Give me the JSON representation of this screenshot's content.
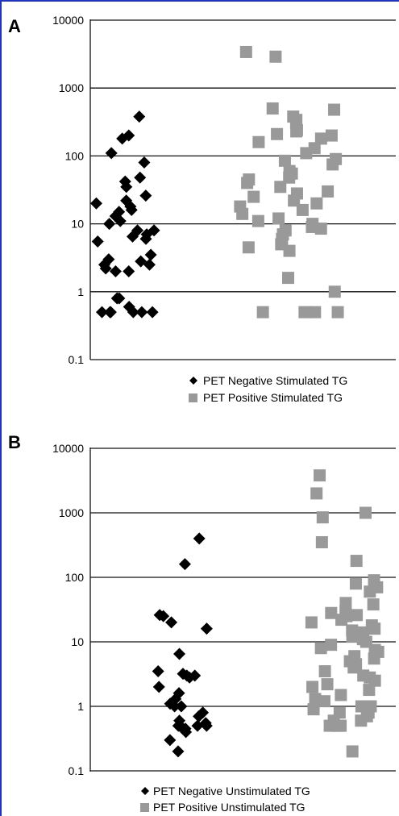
{
  "chart_data": [
    {
      "type": "scatter",
      "panel_label": "A",
      "y_scale": "log",
      "ylim": [
        0.1,
        10000
      ],
      "y_ticks": [
        "10000",
        "1000",
        "100",
        "10",
        "1",
        "0.1"
      ],
      "grid": true,
      "legend_position": "bottom",
      "colors": {
        "negative": "#000000",
        "positive": "#999999"
      },
      "series": [
        {
          "name": "PET Negative Stimulated TG",
          "marker": "diamond",
          "values": [
            380,
            200,
            180,
            110,
            80,
            48,
            42,
            35,
            22,
            20,
            18,
            16,
            15,
            26,
            13,
            11,
            10,
            8,
            8,
            7,
            6,
            5.5,
            6.5,
            3.5,
            3,
            2.8,
            2.5,
            2.5,
            2.2,
            2,
            2,
            0.8,
            0.8,
            0.6,
            0.5,
            0.5,
            0.5,
            0.5,
            0.5,
            0.5
          ]
        },
        {
          "name": "PET Positive Stimulated TG",
          "marker": "square",
          "values": [
            3400,
            2900,
            500,
            480,
            380,
            340,
            300,
            240,
            230,
            210,
            200,
            180,
            160,
            130,
            110,
            90,
            85,
            75,
            60,
            55,
            48,
            45,
            40,
            35,
            30,
            28,
            25,
            22,
            20,
            18,
            16,
            14,
            12,
            11,
            10,
            9,
            8.5,
            8,
            7,
            6,
            5,
            4.5,
            4,
            1.6,
            1,
            0.5,
            0.5,
            0.5,
            0.5
          ]
        }
      ]
    },
    {
      "type": "scatter",
      "panel_label": "B",
      "y_scale": "log",
      "ylim": [
        0.1,
        10000
      ],
      "y_ticks": [
        "10000",
        "1000",
        "100",
        "10",
        "1",
        "0.1"
      ],
      "grid": true,
      "legend_position": "bottom",
      "colors": {
        "negative": "#000000",
        "positive": "#999999"
      },
      "series": [
        {
          "name": "PET Negative Unstimulated TG",
          "marker": "diamond",
          "values": [
            400,
            160,
            26,
            25,
            20,
            16,
            6.5,
            3.5,
            3.2,
            3,
            3,
            2.8,
            2,
            1.6,
            1.3,
            1.1,
            1,
            1,
            0.8,
            0.7,
            0.6,
            0.55,
            0.5,
            0.5,
            0.5,
            0.5,
            0.5,
            0.45,
            0.4,
            0.3,
            0.2
          ]
        },
        {
          "name": "PET Positive Unstimulated TG",
          "marker": "square",
          "values": [
            3800,
            2000,
            1000,
            850,
            350,
            180,
            90,
            80,
            70,
            60,
            40,
            38,
            30,
            28,
            26,
            25,
            22,
            20,
            18,
            16,
            15,
            14,
            12,
            11,
            10,
            9,
            8,
            7.5,
            7,
            6,
            5.5,
            5,
            4.5,
            4,
            3.5,
            3,
            2.8,
            2.5,
            2.2,
            2,
            1.8,
            1.5,
            1.3,
            1.2,
            1,
            1,
            0.9,
            0.8,
            0.8,
            0.7,
            0.6,
            0.6,
            0.5,
            0.5,
            0.5,
            0.5,
            0.2
          ]
        }
      ]
    }
  ]
}
